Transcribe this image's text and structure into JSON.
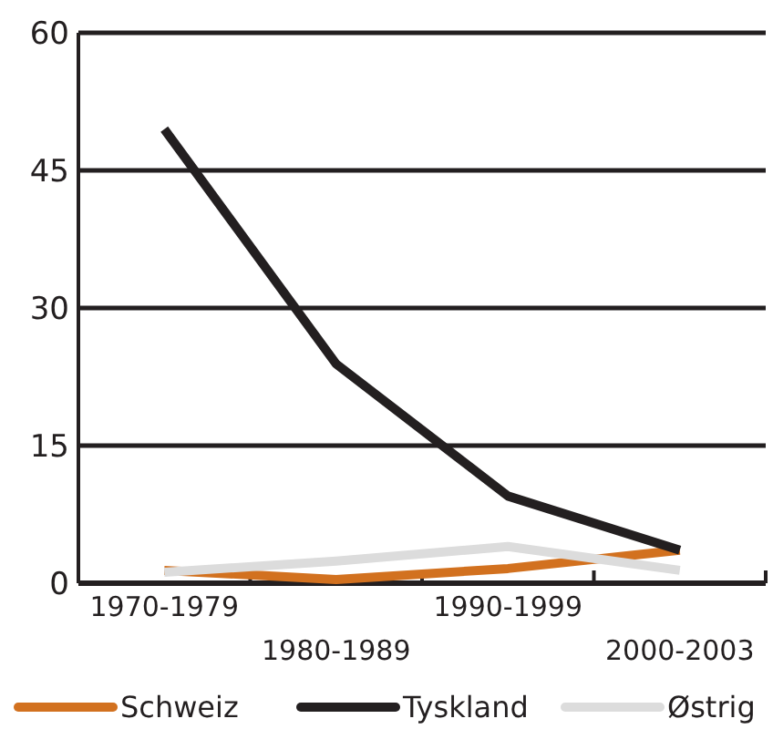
{
  "chart_data": {
    "type": "line",
    "categories": [
      "1970-1979",
      "1980-1989",
      "1990-1999",
      "2000-2003"
    ],
    "series": [
      {
        "name": "Schweiz",
        "color": "#d2711f",
        "values": [
          1.4,
          0.4,
          1.6,
          3.6
        ]
      },
      {
        "name": "Tyskland",
        "color": "#231f20",
        "values": [
          49.5,
          23.9,
          9.5,
          3.6
        ]
      },
      {
        "name": "Østrig",
        "color": "#dcdcdc",
        "values": [
          1.2,
          2.4,
          4,
          1.4
        ]
      }
    ],
    "ylim": [
      0,
      60
    ],
    "yticks": [
      0,
      15,
      30,
      45,
      60
    ],
    "grid": "y",
    "legend": "bottom",
    "marker": "none",
    "line_style": "solid"
  }
}
